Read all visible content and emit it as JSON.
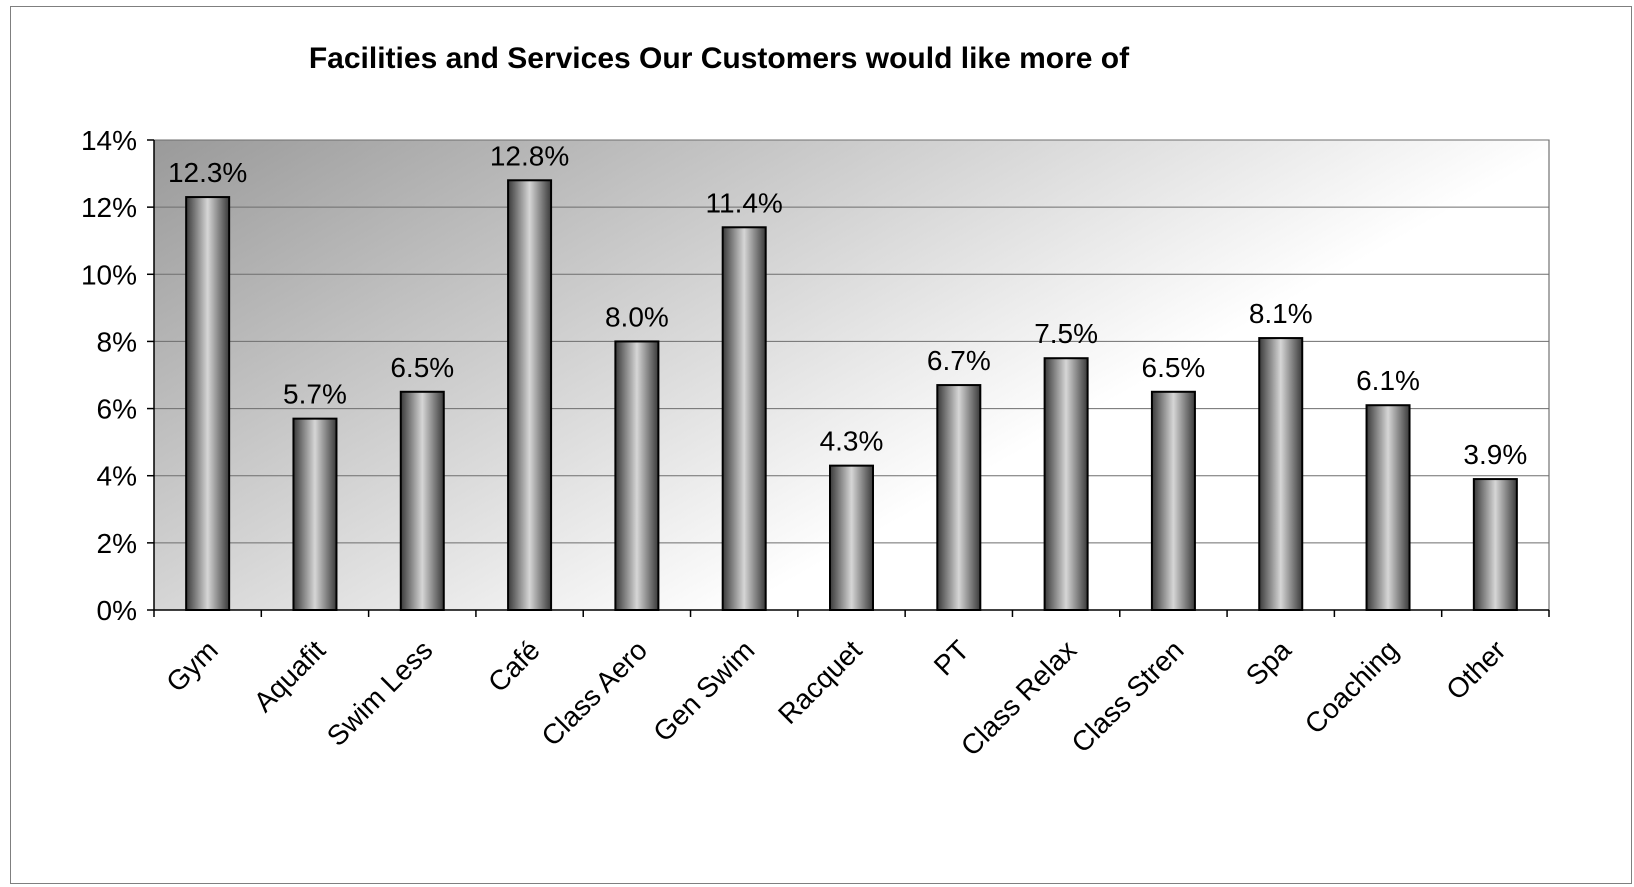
{
  "chart_data": {
    "type": "bar",
    "title": "Facilities and Services Our Customers would like more of",
    "xlabel": "",
    "ylabel": "",
    "categories": [
      "Gym",
      "Aquafit",
      "Swim Less",
      "Café",
      "Class Aero",
      "Gen Swim",
      "Racquet",
      "PT",
      "Class Relax",
      "Class Stren",
      "Spa",
      "Coaching",
      "Other"
    ],
    "values": [
      12.3,
      5.7,
      6.5,
      12.8,
      8.0,
      11.4,
      4.3,
      6.7,
      7.5,
      6.5,
      8.1,
      6.1,
      3.9
    ],
    "data_labels": [
      "12.3%",
      "5.7%",
      "6.5%",
      "12.8%",
      "8.0%",
      "11.4%",
      "4.3%",
      "6.7%",
      "7.5%",
      "6.5%",
      "8.1%",
      "6.1%",
      "3.9%"
    ],
    "ylim": [
      0,
      14
    ],
    "y_ticks": [
      0,
      2,
      4,
      6,
      8,
      10,
      12,
      14
    ],
    "y_tick_labels": [
      "0%",
      "2%",
      "4%",
      "6%",
      "8%",
      "10%",
      "12%",
      "14%"
    ],
    "grid": true,
    "legend": "none",
    "colors": {
      "bar_dark": "#3a3a3a",
      "bar_light": "#d6d6d6",
      "plot_bg_dark": "#9a9a9a",
      "plot_bg_light": "#ffffff",
      "gridline": "#6e6e6e"
    }
  }
}
